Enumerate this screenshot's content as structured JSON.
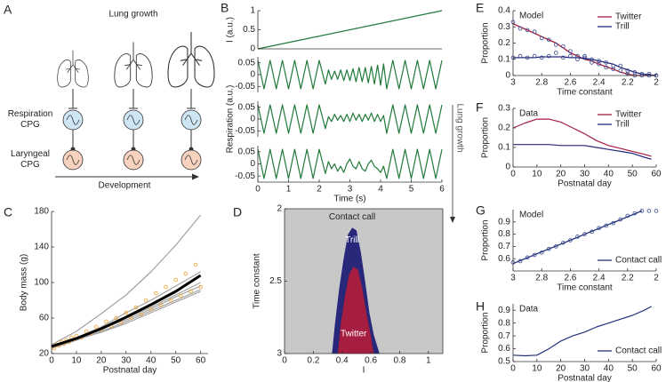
{
  "diagram": {
    "panel": "A",
    "title": "Lung growth",
    "rows": [
      "Respiration CPG",
      "Laryngeal CPG"
    ],
    "arrow_label": "Development"
  },
  "chart_data": [
    {
      "panel": "B",
      "type": "line",
      "ylabel": "I (a.u.)",
      "x": [
        0,
        6
      ],
      "values": [
        0,
        1
      ],
      "color": "#227a3a",
      "xlim": [
        0,
        6
      ],
      "ylim": [
        0,
        1
      ],
      "yticks": [
        0,
        0.5,
        1
      ]
    },
    {
      "type": "line",
      "color": "#227a3a",
      "xlim": [
        0,
        6
      ],
      "ylim": [
        -0.075,
        0.075
      ],
      "yticks": [
        -0.05,
        0,
        0.05
      ],
      "x": [
        0,
        0.2,
        0.4,
        0.6,
        0.8,
        1,
        1.2,
        1.4,
        1.6,
        1.8,
        2,
        2.2,
        2.3,
        2.4,
        2.5,
        2.6,
        2.7,
        2.8,
        2.9,
        3,
        3.1,
        3.2,
        3.3,
        3.4,
        3.5,
        3.6,
        3.7,
        3.8,
        3.9,
        4,
        4.1,
        4.2,
        4.4,
        4.6,
        4.8,
        5,
        5.2,
        5.4,
        5.6,
        5.8,
        6
      ],
      "values": [
        0.06,
        -0.06,
        0.06,
        -0.06,
        0.06,
        -0.06,
        0.06,
        -0.06,
        0.06,
        -0.06,
        0.06,
        -0.04,
        0.02,
        -0.02,
        0.015,
        -0.02,
        0.02,
        -0.025,
        0.02,
        -0.025,
        0.025,
        -0.03,
        0.03,
        -0.03,
        0.03,
        -0.035,
        0.035,
        -0.04,
        0.04,
        -0.045,
        0.045,
        -0.06,
        0.06,
        -0.06,
        0.06,
        -0.06,
        0.06,
        -0.06,
        0.06,
        -0.06,
        0.06
      ]
    },
    {
      "type": "line",
      "color": "#227a3a",
      "ylabel": "Respiration (a.u.)",
      "side_note": "Lung growth",
      "xlim": [
        0,
        6
      ],
      "ylim": [
        -0.075,
        0.075
      ],
      "yticks": [
        -0.05,
        0,
        0.05
      ],
      "x": [
        0,
        0.2,
        0.4,
        0.6,
        0.8,
        1,
        1.2,
        1.4,
        1.6,
        1.8,
        2,
        2.2,
        2.3,
        2.4,
        2.5,
        2.6,
        2.7,
        2.8,
        2.9,
        3,
        3.1,
        3.2,
        3.3,
        3.4,
        3.5,
        3.6,
        3.7,
        3.8,
        3.9,
        4,
        4.1,
        4.2,
        4.4,
        4.6,
        4.8,
        5,
        5.2,
        5.4,
        5.6,
        5.8,
        6
      ],
      "values": [
        0.06,
        -0.06,
        0.06,
        -0.06,
        0.06,
        -0.06,
        0.06,
        -0.06,
        0.06,
        -0.06,
        0.06,
        -0.04,
        0.01,
        -0.01,
        0.02,
        -0.005,
        0.015,
        -0.01,
        0.02,
        -0.01,
        0.025,
        -0.005,
        0.02,
        -0.01,
        0.02,
        -0.005,
        0.025,
        -0.01,
        0.02,
        -0.01,
        0.015,
        -0.06,
        0.06,
        -0.06,
        0.06,
        -0.06,
        0.06,
        -0.06,
        0.06,
        -0.06,
        0.06
      ]
    },
    {
      "type": "line",
      "color": "#227a3a",
      "xlabel": "Time (s)",
      "xlim": [
        0,
        6
      ],
      "ylim": [
        -0.075,
        0.075
      ],
      "xticks": [
        0,
        1,
        2,
        3,
        4,
        5,
        6
      ],
      "yticks": [
        -0.05,
        0,
        0.05
      ],
      "x": [
        0,
        0.2,
        0.4,
        0.6,
        0.8,
        1,
        1.2,
        1.4,
        1.6,
        1.8,
        2,
        2.2,
        2.3,
        2.4,
        2.5,
        2.6,
        2.7,
        2.8,
        2.9,
        3,
        3.1,
        3.2,
        3.3,
        3.4,
        3.5,
        3.6,
        3.7,
        3.8,
        3.9,
        4,
        4.1,
        4.2,
        4.4,
        4.6,
        4.8,
        5,
        5.2,
        5.4,
        5.6,
        5.8,
        6
      ],
      "values": [
        0.06,
        -0.06,
        0.06,
        -0.06,
        0.06,
        -0.06,
        0.06,
        -0.06,
        0.06,
        -0.06,
        0.06,
        -0.04,
        0.01,
        -0.02,
        0,
        -0.03,
        -0.01,
        -0.035,
        0,
        0.02,
        -0.01,
        -0.02,
        0.01,
        -0.02,
        -0.03,
        0,
        0.015,
        -0.01,
        -0.02,
        -0.035,
        -0.01,
        -0.06,
        0.06,
        -0.06,
        0.06,
        -0.06,
        0.06,
        -0.06,
        0.06,
        -0.06,
        0.06
      ]
    },
    {
      "panel": "C",
      "type": "line",
      "xlabel": "Postnatal day",
      "ylabel": "Body mass (g)",
      "xlim": [
        0,
        63
      ],
      "ylim": [
        20,
        180
      ],
      "xticks": [
        0,
        10,
        20,
        30,
        40,
        50,
        60
      ],
      "yticks": [
        20,
        60,
        100,
        140,
        180
      ],
      "series": [
        {
          "color": "#a0a0a0",
          "x": [
            0,
            10,
            20,
            30,
            40,
            50,
            60
          ],
          "values": [
            30,
            45,
            65,
            86,
            112,
            142,
            176
          ]
        },
        {
          "color": "#a0a0a0",
          "x": [
            0,
            10,
            20,
            30,
            40,
            50,
            60
          ],
          "values": [
            28,
            38,
            50,
            66,
            80,
            96,
            112
          ]
        },
        {
          "color": "#a0a0a0",
          "x": [
            0,
            10,
            20,
            30,
            40,
            50,
            60
          ],
          "values": [
            27,
            36,
            47,
            60,
            72,
            86,
            100
          ]
        },
        {
          "color": "#a0a0a0",
          "x": [
            0,
            10,
            20,
            30,
            40,
            50,
            60
          ],
          "values": [
            26,
            35,
            45,
            56,
            68,
            80,
            92
          ]
        },
        {
          "color": "#a0a0a0",
          "x": [
            0,
            10,
            20,
            30,
            40,
            50,
            60
          ],
          "values": [
            29,
            38,
            48,
            58,
            70,
            84,
            96
          ]
        },
        {
          "color": "#a0a0a0",
          "x": [
            0,
            10,
            20,
            30,
            40,
            50,
            60
          ],
          "values": [
            28,
            36,
            44,
            54,
            66,
            78,
            90
          ]
        },
        {
          "color": "#f0a030",
          "marker": "circle",
          "x": [
            1,
            2,
            3,
            4,
            5,
            6,
            7,
            8,
            9,
            10,
            12,
            14,
            16,
            18,
            20,
            22,
            24,
            26,
            28,
            30,
            32,
            34,
            36,
            38,
            40,
            42,
            44,
            46,
            48,
            50,
            52,
            54,
            56,
            58,
            60
          ],
          "values": [
            26,
            30,
            29,
            33,
            31,
            35,
            33,
            38,
            36,
            40,
            38,
            45,
            43,
            50,
            47,
            56,
            51,
            60,
            55,
            66,
            60,
            72,
            64,
            80,
            70,
            88,
            75,
            95,
            80,
            103,
            85,
            110,
            90,
            120,
            95
          ]
        },
        {
          "color": "#000000",
          "width": 3,
          "x": [
            0,
            10,
            20,
            30,
            40,
            50,
            60
          ],
          "values": [
            28,
            37,
            48,
            61,
            75,
            90,
            108
          ]
        }
      ]
    },
    {
      "panel": "D",
      "type": "region",
      "xlabel": "I",
      "ylabel": "Time constant",
      "xlim": [
        0,
        1.1
      ],
      "ylim": [
        3,
        2
      ],
      "xticks": [
        0,
        0.2,
        0.4,
        0.6,
        0.8,
        1
      ],
      "yticks": [
        2,
        2.5,
        3
      ],
      "background": {
        "name": "Contact call",
        "color": "#c8c8c8"
      },
      "series": [
        {
          "name": "Trill",
          "color": "#27287a",
          "x": [
            0.33,
            0.35,
            0.38,
            0.41,
            0.44,
            0.47,
            0.5,
            0.53,
            0.56,
            0.59,
            0.62,
            0.66
          ],
          "values": [
            3,
            2.8,
            2.55,
            2.35,
            2.18,
            2.13,
            2.15,
            2.3,
            2.5,
            2.72,
            2.87,
            3
          ]
        },
        {
          "name": "Twitter",
          "color": "#a51d3f",
          "x": [
            0.37,
            0.39,
            0.42,
            0.45,
            0.48,
            0.51,
            0.54,
            0.57,
            0.6,
            0.62
          ],
          "values": [
            3,
            2.8,
            2.6,
            2.45,
            2.4,
            2.42,
            2.55,
            2.72,
            2.88,
            3
          ]
        }
      ]
    },
    {
      "panel": "E",
      "type": "line",
      "annotation": "Model",
      "xlabel": "Time constant",
      "ylabel": "Proportion",
      "legend": "upper right",
      "marker_color": "#3a4a90",
      "xlim": [
        3,
        2
      ],
      "ylim": [
        0,
        0.4
      ],
      "xticks": [
        3,
        2.8,
        2.6,
        2.4,
        2.2,
        2
      ],
      "yticks": [
        0,
        0.1,
        0.2,
        0.3,
        0.4
      ],
      "x": [
        3,
        2.95,
        2.9,
        2.85,
        2.8,
        2.75,
        2.7,
        2.65,
        2.6,
        2.55,
        2.5,
        2.45,
        2.4,
        2.35,
        2.3,
        2.25,
        2.2,
        2.15,
        2.1,
        2.05,
        2
      ],
      "series": [
        {
          "name": "Twitter",
          "color": "#a51d3f",
          "values": [
            0.33,
            0.29,
            0.28,
            0.27,
            0.23,
            0.22,
            0.19,
            0.18,
            0.15,
            0.12,
            0.11,
            0.08,
            0.07,
            0.05,
            0.04,
            0.03,
            0.01,
            0,
            0,
            0,
            0
          ],
          "fit": [
            0.32,
            0.3,
            0.28,
            0.26,
            0.24,
            0.22,
            0.2,
            0.17,
            0.14,
            0.12,
            0.1,
            0.09,
            0.07,
            0.055,
            0.04,
            0.02,
            0.01,
            0,
            0,
            0,
            0
          ]
        },
        {
          "name": "Trill",
          "color": "#27287a",
          "values": [
            0.11,
            0.12,
            0.11,
            0.12,
            0.11,
            0.12,
            0.14,
            0.11,
            0.12,
            0.1,
            0.12,
            0.1,
            0.09,
            0.08,
            0.06,
            0.06,
            0.03,
            0.02,
            0.01,
            0.01,
            0
          ],
          "fit": [
            0.11,
            0.11,
            0.11,
            0.11,
            0.115,
            0.115,
            0.115,
            0.115,
            0.11,
            0.11,
            0.105,
            0.1,
            0.09,
            0.08,
            0.07,
            0.05,
            0.035,
            0.02,
            0.01,
            0.005,
            0
          ]
        }
      ]
    },
    {
      "panel": "F",
      "type": "line",
      "annotation": "Data",
      "xlabel": "Postnatal day",
      "ylabel": "Proportion",
      "legend": "upper right",
      "xlim": [
        0,
        60
      ],
      "ylim": [
        0,
        0.3
      ],
      "xticks": [
        0,
        10,
        20,
        30,
        40,
        50,
        60
      ],
      "yticks": [
        0,
        0.1,
        0.2,
        0.3
      ],
      "x": [
        0,
        5,
        10,
        15,
        20,
        25,
        30,
        35,
        40,
        45,
        50,
        55,
        58
      ],
      "series": [
        {
          "name": "Twitter",
          "color": "#a51d3f",
          "values": [
            0.2,
            0.225,
            0.245,
            0.245,
            0.23,
            0.2,
            0.17,
            0.135,
            0.11,
            0.095,
            0.08,
            0.065,
            0.055
          ]
        },
        {
          "name": "Trill",
          "color": "#27287a",
          "values": [
            0.115,
            0.115,
            0.115,
            0.115,
            0.11,
            0.11,
            0.11,
            0.1,
            0.09,
            0.08,
            0.07,
            0.05,
            0.04
          ]
        }
      ]
    },
    {
      "panel": "G",
      "type": "line",
      "annotation": "Model",
      "xlabel": "Time constant",
      "ylabel": "Proportion",
      "legend": "lower right",
      "marker_color": "#3a4a90",
      "xlim": [
        3,
        2
      ],
      "ylim": [
        0.5,
        1
      ],
      "xticks": [
        3,
        2.8,
        2.6,
        2.4,
        2.2,
        2
      ],
      "yticks": [
        0.6,
        0.7,
        0.8,
        0.9
      ],
      "x": [
        3,
        2.95,
        2.9,
        2.85,
        2.8,
        2.75,
        2.7,
        2.65,
        2.6,
        2.55,
        2.5,
        2.45,
        2.4,
        2.35,
        2.3,
        2.25,
        2.2,
        2.15,
        2.1,
        2.05,
        2
      ],
      "series": [
        {
          "name": "Contact call",
          "color": "#22317a",
          "values": [
            0.57,
            0.58,
            0.61,
            0.63,
            0.65,
            0.68,
            0.7,
            0.73,
            0.75,
            0.78,
            0.8,
            0.82,
            0.85,
            0.87,
            0.89,
            0.92,
            0.95,
            0.97,
            0.99,
            0.99,
            0.99
          ],
          "fit": [
            0.56,
            0.584,
            0.608,
            0.632,
            0.656,
            0.68,
            0.703,
            0.727,
            0.751,
            0.775,
            0.799,
            0.823,
            0.847,
            0.871,
            0.894,
            0.918,
            0.942,
            0.966,
            0.99,
            null,
            null
          ]
        }
      ]
    },
    {
      "panel": "H",
      "type": "line",
      "annotation": "Data",
      "xlabel": "Postnatal day",
      "ylabel": "Proportion",
      "legend": "lower right",
      "xlim": [
        0,
        60
      ],
      "ylim": [
        0.5,
        0.95
      ],
      "xticks": [
        0,
        10,
        20,
        30,
        40,
        50,
        60
      ],
      "yticks": [
        0.5,
        0.6,
        0.7,
        0.8,
        0.9
      ],
      "x": [
        0,
        5,
        10,
        15,
        20,
        25,
        30,
        35,
        40,
        45,
        50,
        55,
        58
      ],
      "series": [
        {
          "name": "Contact call",
          "color": "#22317a",
          "values": [
            0.55,
            0.545,
            0.55,
            0.6,
            0.66,
            0.7,
            0.73,
            0.77,
            0.8,
            0.83,
            0.86,
            0.9,
            0.93
          ]
        }
      ]
    }
  ]
}
